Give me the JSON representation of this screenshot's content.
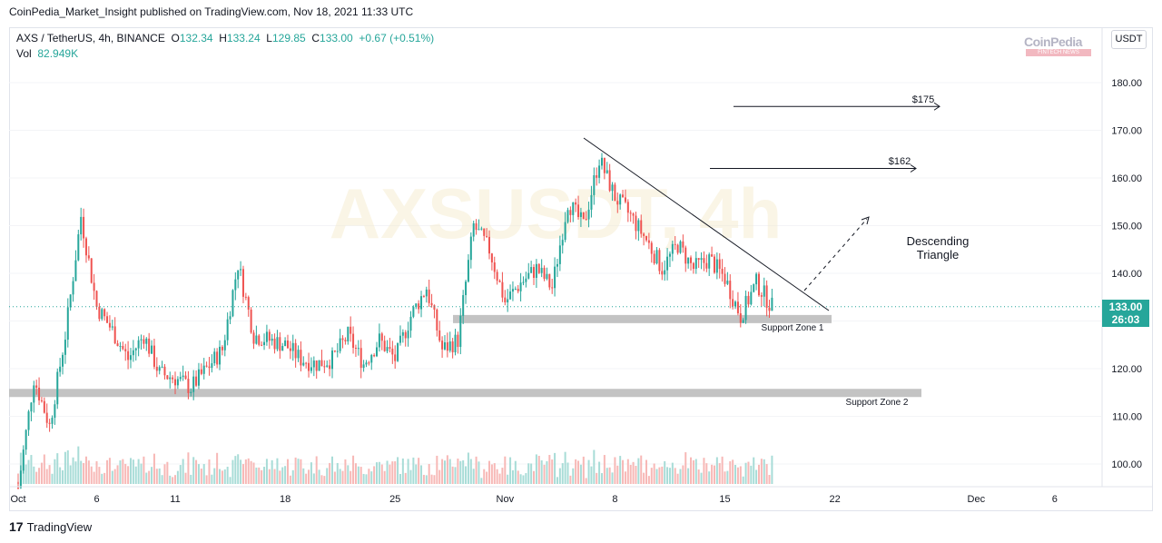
{
  "published": "CoinPedia_Market_Insight published on TradingView.com, Nov 18, 2021 11:33 UTC",
  "legend": {
    "symbol": "AXS / TetherUS, 4h, BINANCE",
    "open_label": "O",
    "open": "132.34",
    "high_label": "H",
    "high": "133.24",
    "low_label": "L",
    "low": "129.85",
    "close_label": "C",
    "close": "133.00",
    "change": "+0.67 (+0.51%)",
    "vol_label": "Vol",
    "vol": "82.949K"
  },
  "currency_button": "USDT",
  "brand": {
    "name": "CoinPedia",
    "sub": "FINTECH NEWS"
  },
  "watermark": "AXSUSDT, 4h",
  "price_tag": {
    "price": "133.00",
    "countdown": "26:03"
  },
  "footer": {
    "logo": "17",
    "text": "TradingView"
  },
  "colors": {
    "up": "#26a69a",
    "down": "#ef5350",
    "zone": "#bdbdbd"
  },
  "chart_data": {
    "type": "candlestick",
    "title": "AXS / TetherUS, 4h, BINANCE",
    "y_ticks": [
      "180.00",
      "170.00",
      "160.00",
      "150.00",
      "140.00",
      "130.00",
      "120.00",
      "110.00",
      "100.00"
    ],
    "y_tick_values": [
      180,
      170,
      160,
      150,
      140,
      130,
      120,
      110,
      100
    ],
    "x_ticks": [
      "Oct",
      "6",
      "11",
      "18",
      "25",
      "Nov",
      "8",
      "15",
      "22",
      "Dec",
      "6"
    ],
    "close_path": [
      [
        "Oct 1",
        95
      ],
      [
        "Oct 2",
        118
      ],
      [
        "Oct 3",
        108
      ],
      [
        "Oct 4",
        127
      ],
      [
        "Oct 5",
        152
      ],
      [
        "Oct 6",
        133
      ],
      [
        "Oct 7",
        128
      ],
      [
        "Oct 8",
        122
      ],
      [
        "Oct 9",
        127
      ],
      [
        "Oct 10",
        119
      ],
      [
        "Oct 11",
        118
      ],
      [
        "Oct 12",
        116
      ],
      [
        "Oct 13",
        120
      ],
      [
        "Oct 14",
        124
      ],
      [
        "Oct 15",
        142
      ],
      [
        "Oct 16",
        127
      ],
      [
        "Oct 17",
        126
      ],
      [
        "Oct 18",
        125
      ],
      [
        "Oct 19",
        122
      ],
      [
        "Oct 20",
        121
      ],
      [
        "Oct 21",
        122
      ],
      [
        "Oct 22",
        127
      ],
      [
        "Oct 23",
        121
      ],
      [
        "Oct 24",
        126
      ],
      [
        "Oct 25",
        122
      ],
      [
        "Oct 26",
        131
      ],
      [
        "Oct 27",
        137
      ],
      [
        "Oct 28",
        124
      ],
      [
        "Oct 29",
        126
      ],
      [
        "Oct 30",
        150
      ],
      [
        "Oct 31",
        145
      ],
      [
        "Nov 1",
        134
      ],
      [
        "Nov 2",
        138
      ],
      [
        "Nov 3",
        141
      ],
      [
        "Nov 4",
        137
      ],
      [
        "Nov 5",
        155
      ],
      [
        "Nov 6",
        150
      ],
      [
        "Nov 7",
        164
      ],
      [
        "Nov 8",
        156
      ],
      [
        "Nov 9",
        152
      ],
      [
        "Nov 10",
        147
      ],
      [
        "Nov 11",
        141
      ],
      [
        "Nov 12",
        146
      ],
      [
        "Nov 13",
        141
      ],
      [
        "Nov 14",
        143
      ],
      [
        "Nov 15",
        139
      ],
      [
        "Nov 16",
        131
      ],
      [
        "Nov 17",
        138
      ],
      [
        "Nov 18",
        133
      ]
    ],
    "annotations": {
      "target_1": "$175",
      "target_2": "$162",
      "pattern": "Descending Triangle",
      "support_1": "Support Zone 1",
      "support_2": "Support Zone 2"
    },
    "levels": {
      "target_1": 175,
      "target_2": 162,
      "support_1": 130.5,
      "support_2": 115
    }
  }
}
